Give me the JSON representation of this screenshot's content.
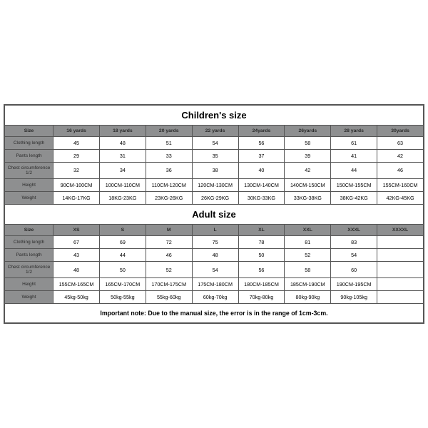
{
  "background_color": "#ffffff",
  "border_color": "#555555",
  "header_bg": "#8e8f90",
  "children": {
    "title": "Children's size",
    "columns": [
      "Size",
      "16 yards",
      "18 yards",
      "20 yards",
      "22 yards",
      "24yards",
      "26yards",
      "28 yards",
      "30yards"
    ],
    "rows": [
      {
        "label": "Clothing length",
        "cells": [
          "45",
          "48",
          "51",
          "54",
          "56",
          "58",
          "61",
          "63"
        ]
      },
      {
        "label": "Pants length",
        "cells": [
          "29",
          "31",
          "33",
          "35",
          "37",
          "39",
          "41",
          "42"
        ]
      },
      {
        "label": "Chest circumference 1/2",
        "cells": [
          "32",
          "34",
          "36",
          "38",
          "40",
          "42",
          "44",
          "46"
        ]
      },
      {
        "label": "Height",
        "cells": [
          "90CM-100CM",
          "100CM-110CM",
          "110CM-120CM",
          "120CM-130CM",
          "130CM-140CM",
          "140CM-150CM",
          "150CM-155CM",
          "155CM-160CM"
        ]
      },
      {
        "label": "Weight",
        "cells": [
          "14KG-17KG",
          "18KG-23KG",
          "23KG-26KG",
          "26KG-29KG",
          "30KG-33KG",
          "33KG-38KG",
          "38KG-42KG",
          "42KG-45KG"
        ]
      }
    ]
  },
  "adult": {
    "title": "Adult size",
    "columns": [
      "Size",
      "XS",
      "S",
      "M",
      "L",
      "XL",
      "XXL",
      "XXXL",
      "XXXXL"
    ],
    "rows": [
      {
        "label": "Clothing length",
        "cells": [
          "67",
          "69",
          "72",
          "75",
          "78",
          "81",
          "83",
          ""
        ]
      },
      {
        "label": "Pants length",
        "cells": [
          "43",
          "44",
          "46",
          "48",
          "50",
          "52",
          "54",
          ""
        ]
      },
      {
        "label": "Chest circumference 1/2",
        "cells": [
          "48",
          "50",
          "52",
          "54",
          "56",
          "58",
          "60",
          ""
        ]
      },
      {
        "label": "Height",
        "cells": [
          "155CM-165CM",
          "165CM-170CM",
          "170CM-175CM",
          "175CM-180CM",
          "180CM-185CM",
          "185CM-190CM",
          "190CM-195CM",
          ""
        ]
      },
      {
        "label": "Weight",
        "cells": [
          "45kg-50kg",
          "50kg-55kg",
          "55kg-60kg",
          "60kg-70kg",
          "70kg-80kg",
          "80kg-90kg",
          "90kg-105kg",
          ""
        ]
      }
    ]
  },
  "note": "Important note: Due to the manual size, the error is in the range of 1cm-3cm."
}
